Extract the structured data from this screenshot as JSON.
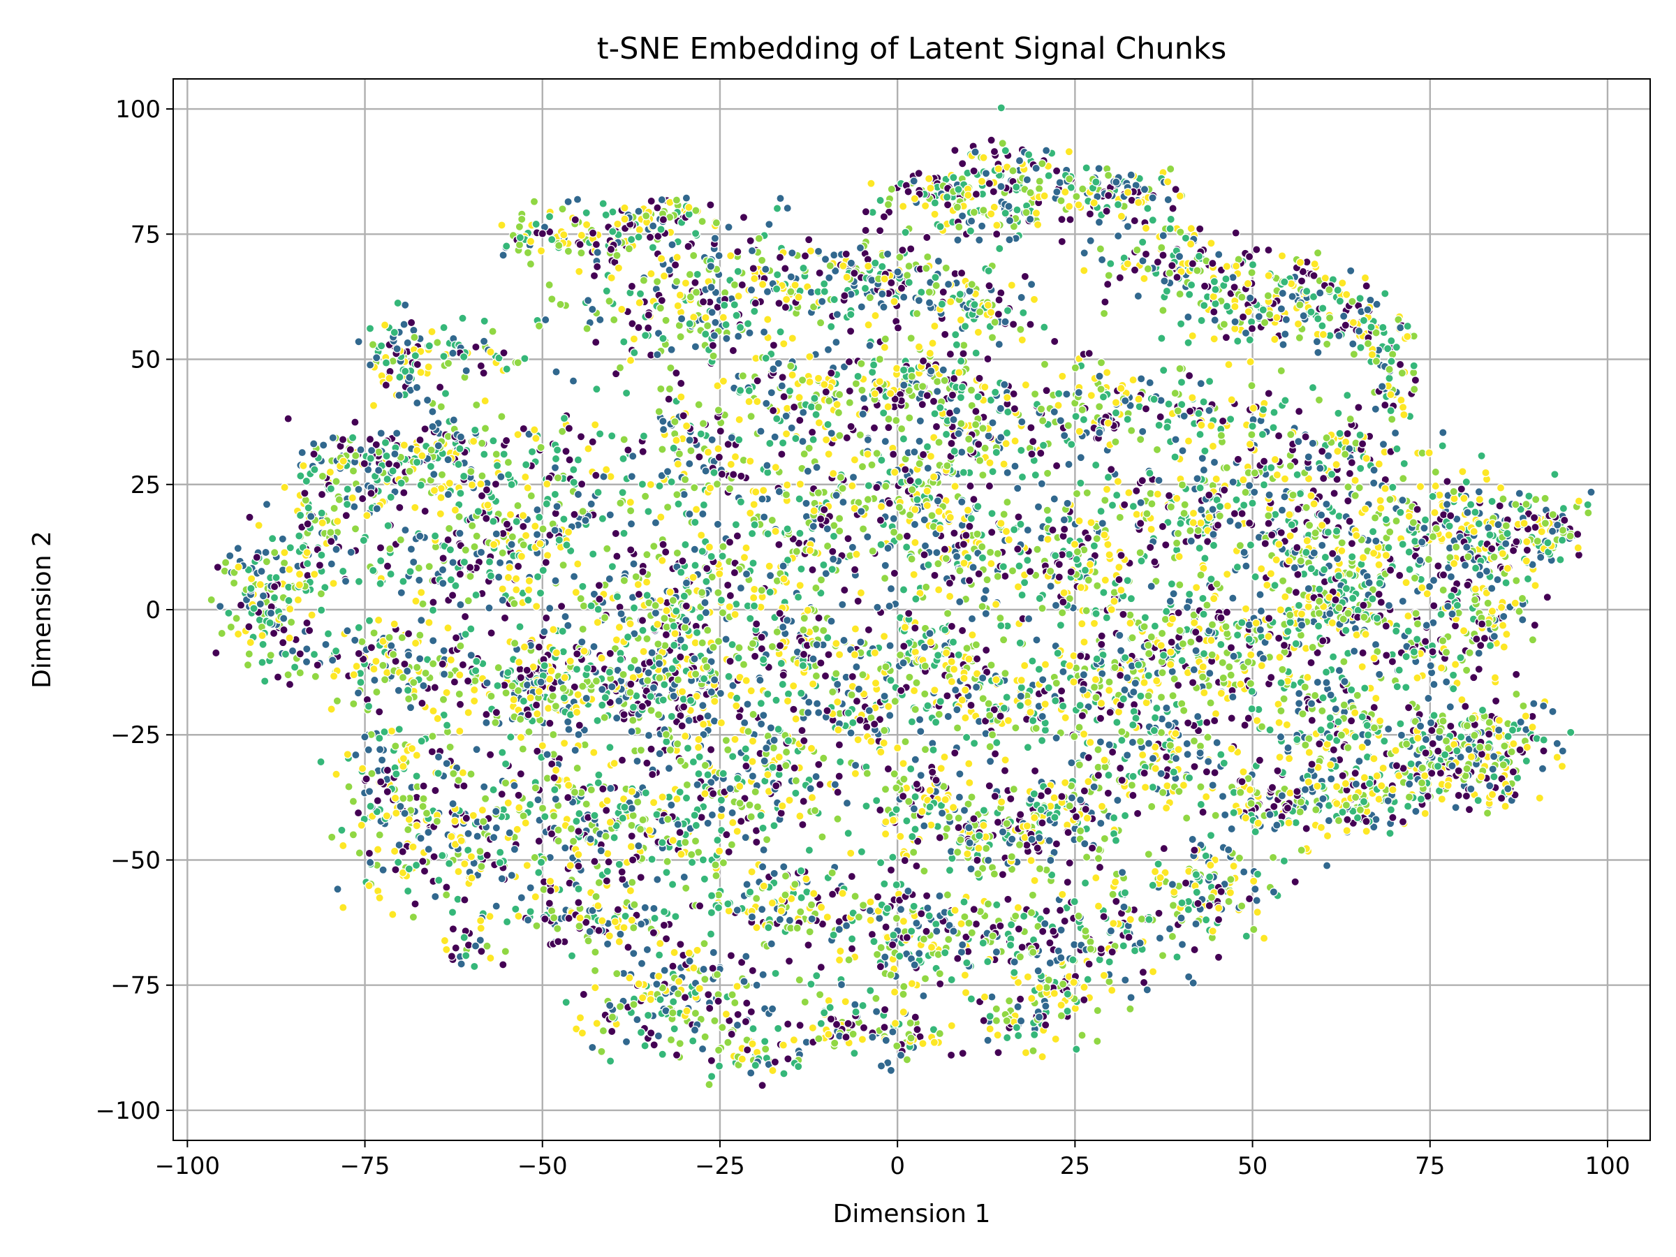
{
  "chart_data": {
    "type": "scatter",
    "title": "t-SNE Embedding of Latent Signal Chunks",
    "xlabel": "Dimension 1",
    "ylabel": "Dimension 2",
    "xlim": [
      -102,
      106
    ],
    "ylim": [
      -106,
      106
    ],
    "x_ticks": [
      -100,
      -75,
      -50,
      -25,
      0,
      25,
      50,
      75,
      100
    ],
    "y_ticks": [
      -100,
      -75,
      -50,
      -25,
      0,
      25,
      50,
      75,
      100
    ],
    "x_tick_labels": [
      "−100",
      "−75",
      "−50",
      "−25",
      "0",
      "25",
      "50",
      "75",
      "100"
    ],
    "y_tick_labels": [
      "−100",
      "−75",
      "−50",
      "−25",
      "0",
      "25",
      "50",
      "75",
      "100"
    ],
    "grid": true,
    "legend": "none",
    "colormap": "viridis",
    "palette": [
      "#440154",
      "#31688e",
      "#35b779",
      "#90d743",
      "#fde725"
    ],
    "point_edge_color": "#ffffff",
    "approx_point_count": 6000,
    "clusters": [
      {
        "x": -89,
        "y": 2,
        "sx": 3,
        "sy": 6,
        "n": 120
      },
      {
        "x": -82,
        "y": 16,
        "sx": 3,
        "sy": 8,
        "n": 90
      },
      {
        "x": -76,
        "y": 28,
        "sx": 3,
        "sy": 4,
        "n": 60
      },
      {
        "x": -70,
        "y": 50,
        "sx": 2.5,
        "sy": 4,
        "n": 70
      },
      {
        "x": -61,
        "y": 51,
        "sx": 4,
        "sy": 2,
        "n": 40
      },
      {
        "x": -66,
        "y": 31,
        "sx": 6,
        "sy": 4,
        "n": 150
      },
      {
        "x": -62,
        "y": 12,
        "sx": 8,
        "sy": 7,
        "n": 160
      },
      {
        "x": -72,
        "y": -10,
        "sx": 8,
        "sy": 4,
        "n": 140
      },
      {
        "x": -52,
        "y": -15,
        "sx": 5,
        "sy": 5,
        "n": 140
      },
      {
        "x": -70,
        "y": -38,
        "sx": 4,
        "sy": 10,
        "n": 160
      },
      {
        "x": -59,
        "y": -44,
        "sx": 5,
        "sy": 9,
        "n": 150
      },
      {
        "x": -59,
        "y": -67,
        "sx": 2,
        "sy": 2,
        "n": 20
      },
      {
        "x": -48,
        "y": 20,
        "sx": 6,
        "sy": 12,
        "n": 170
      },
      {
        "x": -40,
        "y": -13,
        "sx": 7,
        "sy": 6,
        "n": 170
      },
      {
        "x": -44,
        "y": -42,
        "sx": 5,
        "sy": 8,
        "n": 150
      },
      {
        "x": -42,
        "y": -63,
        "sx": 6,
        "sy": 3,
        "n": 90
      },
      {
        "x": -36,
        "y": -80,
        "sx": 5,
        "sy": 4,
        "n": 80
      },
      {
        "x": -45,
        "y": 74,
        "sx": 6,
        "sy": 3,
        "n": 110
      },
      {
        "x": -34,
        "y": 79,
        "sx": 4,
        "sy": 2,
        "n": 60
      },
      {
        "x": -32,
        "y": 60,
        "sx": 7,
        "sy": 5,
        "n": 120
      },
      {
        "x": -28,
        "y": 32,
        "sx": 6,
        "sy": 8,
        "n": 140
      },
      {
        "x": -30,
        "y": 5,
        "sx": 6,
        "sy": 7,
        "n": 160
      },
      {
        "x": -30,
        "y": -15,
        "sx": 5,
        "sy": 6,
        "n": 160
      },
      {
        "x": -30,
        "y": -43,
        "sx": 6,
        "sy": 9,
        "n": 160
      },
      {
        "x": -28,
        "y": -75,
        "sx": 6,
        "sy": 5,
        "n": 80
      },
      {
        "x": -20,
        "y": -88,
        "sx": 4,
        "sy": 3,
        "n": 60
      },
      {
        "x": -18,
        "y": 65,
        "sx": 7,
        "sy": 5,
        "n": 120
      },
      {
        "x": -12,
        "y": 42,
        "sx": 6,
        "sy": 6,
        "n": 120
      },
      {
        "x": -12,
        "y": 15,
        "sx": 6,
        "sy": 8,
        "n": 140
      },
      {
        "x": -15,
        "y": -8,
        "sx": 5,
        "sy": 6,
        "n": 110
      },
      {
        "x": -18,
        "y": -33,
        "sx": 5,
        "sy": 7,
        "n": 120
      },
      {
        "x": -15,
        "y": -60,
        "sx": 6,
        "sy": 5,
        "n": 110
      },
      {
        "x": -8,
        "y": -83,
        "sx": 4,
        "sy": 3,
        "n": 60
      },
      {
        "x": -3,
        "y": 66,
        "sx": 5,
        "sy": 4,
        "n": 110
      },
      {
        "x": 2,
        "y": 45,
        "sx": 4,
        "sy": 4,
        "n": 110
      },
      {
        "x": 2,
        "y": 25,
        "sx": 5,
        "sy": 5,
        "n": 120
      },
      {
        "x": -5,
        "y": -20,
        "sx": 5,
        "sy": 6,
        "n": 110
      },
      {
        "x": 5,
        "y": -8,
        "sx": 5,
        "sy": 5,
        "n": 110
      },
      {
        "x": 5,
        "y": -40,
        "sx": 5,
        "sy": 6,
        "n": 110
      },
      {
        "x": 0,
        "y": -65,
        "sx": 4,
        "sy": 6,
        "n": 100
      },
      {
        "x": 2,
        "y": -85,
        "sx": 3,
        "sy": 3,
        "n": 40
      },
      {
        "x": 6,
        "y": 83,
        "sx": 4,
        "sy": 2,
        "n": 80
      },
      {
        "x": 15,
        "y": 88,
        "sx": 4,
        "sy": 3,
        "n": 70
      },
      {
        "x": 13,
        "y": 78,
        "sx": 4,
        "sy": 2,
        "n": 50
      },
      {
        "x": 10,
        "y": 60,
        "sx": 5,
        "sy": 4,
        "n": 90
      },
      {
        "x": 12,
        "y": 36,
        "sx": 5,
        "sy": 6,
        "n": 120
      },
      {
        "x": 8,
        "y": 12,
        "sx": 5,
        "sy": 6,
        "n": 120
      },
      {
        "x": 15,
        "y": -18,
        "sx": 5,
        "sy": 5,
        "n": 120
      },
      {
        "x": 15,
        "y": -45,
        "sx": 5,
        "sy": 4,
        "n": 110
      },
      {
        "x": 12,
        "y": -65,
        "sx": 5,
        "sy": 4,
        "n": 100
      },
      {
        "x": 18,
        "y": -82,
        "sx": 4,
        "sy": 3,
        "n": 60
      },
      {
        "x": 28,
        "y": 84,
        "sx": 5,
        "sy": 2,
        "n": 70
      },
      {
        "x": 33,
        "y": 82,
        "sx": 4,
        "sy": 3,
        "n": 40
      },
      {
        "x": 28,
        "y": 40,
        "sx": 6,
        "sy": 5,
        "n": 120
      },
      {
        "x": 25,
        "y": 10,
        "sx": 5,
        "sy": 8,
        "n": 140
      },
      {
        "x": 30,
        "y": -15,
        "sx": 5,
        "sy": 5,
        "n": 120
      },
      {
        "x": 25,
        "y": -40,
        "sx": 5,
        "sy": 5,
        "n": 100
      },
      {
        "x": 30,
        "y": -65,
        "sx": 5,
        "sy": 6,
        "n": 110
      },
      {
        "x": 22,
        "y": -75,
        "sx": 3,
        "sy": 3,
        "n": 40
      },
      {
        "x": 40,
        "y": 70,
        "sx": 6,
        "sy": 3,
        "n": 90
      },
      {
        "x": 48,
        "y": 60,
        "sx": 6,
        "sy": 4,
        "n": 100
      },
      {
        "x": 45,
        "y": 40,
        "sx": 5,
        "sy": 3,
        "n": 60
      },
      {
        "x": 40,
        "y": 20,
        "sx": 6,
        "sy": 7,
        "n": 130
      },
      {
        "x": 38,
        "y": -5,
        "sx": 6,
        "sy": 6,
        "n": 140
      },
      {
        "x": 38,
        "y": -30,
        "sx": 5,
        "sy": 5,
        "n": 110
      },
      {
        "x": 42,
        "y": -55,
        "sx": 5,
        "sy": 5,
        "n": 120
      },
      {
        "x": 55,
        "y": 65,
        "sx": 3,
        "sy": 3,
        "n": 40
      },
      {
        "x": 53,
        "y": 20,
        "sx": 5,
        "sy": 8,
        "n": 130
      },
      {
        "x": 50,
        "y": -10,
        "sx": 5,
        "sy": 8,
        "n": 120
      },
      {
        "x": 53,
        "y": -38,
        "sx": 5,
        "sy": 4,
        "n": 100
      },
      {
        "x": 62,
        "y": 60,
        "sx": 3,
        "sy": 4,
        "n": 60
      },
      {
        "x": 68,
        "y": 52,
        "sx": 3,
        "sy": 3,
        "n": 40
      },
      {
        "x": 70,
        "y": 43,
        "sx": 1.5,
        "sy": 3,
        "n": 30
      },
      {
        "x": 63,
        "y": 32,
        "sx": 4,
        "sy": 3,
        "n": 60
      },
      {
        "x": 62,
        "y": 10,
        "sx": 5,
        "sy": 7,
        "n": 140
      },
      {
        "x": 60,
        "y": 0,
        "sx": 4,
        "sy": 3,
        "n": 80
      },
      {
        "x": 62,
        "y": -22,
        "sx": 5,
        "sy": 5,
        "n": 120
      },
      {
        "x": 65,
        "y": -38,
        "sx": 5,
        "sy": 3,
        "n": 100
      },
      {
        "x": 75,
        "y": 15,
        "sx": 6,
        "sy": 8,
        "n": 140
      },
      {
        "x": 74,
        "y": -8,
        "sx": 5,
        "sy": 4,
        "n": 90
      },
      {
        "x": 76,
        "y": -30,
        "sx": 5,
        "sy": 5,
        "n": 110
      },
      {
        "x": 85,
        "y": 15,
        "sx": 5,
        "sy": 5,
        "n": 130
      },
      {
        "x": 92,
        "y": 17,
        "sx": 3,
        "sy": 3,
        "n": 60
      },
      {
        "x": 82,
        "y": -2,
        "sx": 4,
        "sy": 4,
        "n": 70
      },
      {
        "x": 83,
        "y": -25,
        "sx": 5,
        "sy": 4,
        "n": 110
      },
      {
        "x": 80,
        "y": -33,
        "sx": 4,
        "sy": 3,
        "n": 70
      }
    ],
    "scatter_background": {
      "x_range": [
        -85,
        88
      ],
      "y_range": [
        -80,
        85
      ],
      "n": 500
    }
  }
}
